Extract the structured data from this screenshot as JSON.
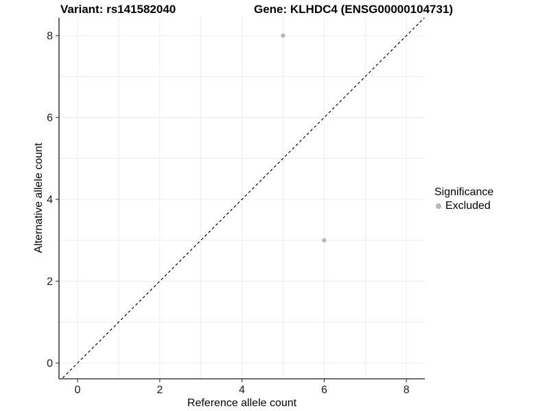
{
  "chart_data": {
    "type": "scatter",
    "titles": {
      "left": "Variant: rs141582040",
      "right": "Gene: KLHDC4 (ENSG00000104731)"
    },
    "xlabel": "Reference allele count",
    "ylabel": "Alternative allele count",
    "x_ticks": [
      0,
      2,
      4,
      6,
      8
    ],
    "y_ticks": [
      0,
      2,
      4,
      6,
      8
    ],
    "xlim": [
      -0.45,
      8.45
    ],
    "ylim": [
      -0.45,
      8.45
    ],
    "grid": {
      "min": 0,
      "max": 8,
      "step": 1,
      "on": true
    },
    "points": [
      {
        "x": 5,
        "y": 8,
        "series": "Excluded"
      },
      {
        "x": 6,
        "y": 3,
        "series": "Excluded"
      }
    ],
    "identity_line": {
      "from": [
        -0.45,
        -0.45
      ],
      "to": [
        8.45,
        8.45
      ],
      "style": "dashed"
    },
    "legend": {
      "title": "Significance",
      "position": "right",
      "items": [
        {
          "label": "Excluded",
          "color": "#B8B8B8"
        }
      ]
    },
    "colors": {
      "point": "#B8B8B8",
      "grid": "#ECECEC",
      "axis": "#3F3F3F",
      "tick_label": "#1A1A1A",
      "identity": "#000000",
      "background": "#FFFFFF"
    }
  }
}
